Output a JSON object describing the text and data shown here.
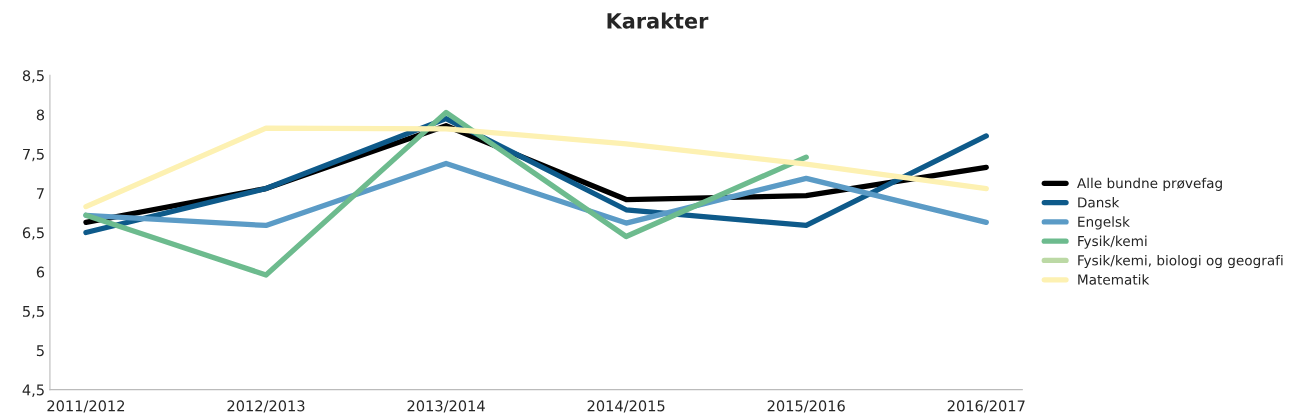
{
  "chart_data": {
    "type": "line",
    "title": "Karakter",
    "categories": [
      "2011/2012",
      "2012/2013",
      "2013/2014",
      "2014/2015",
      "2015/2016",
      "2016/2017"
    ],
    "series": [
      {
        "name": "Alle bundne prøvefag",
        "color": "#000000",
        "values": [
          6.63,
          7.06,
          7.86,
          6.92,
          6.97,
          7.33
        ]
      },
      {
        "name": "Dansk",
        "color": "#0e5a8a",
        "values": [
          6.5,
          7.06,
          7.95,
          6.79,
          6.59,
          7.73
        ]
      },
      {
        "name": "Engelsk",
        "color": "#5b9bc6",
        "values": [
          6.72,
          6.59,
          7.38,
          6.62,
          7.19,
          6.63
        ]
      },
      {
        "name": "Fysik/kemi",
        "color": "#6dbb8e",
        "values": [
          6.72,
          5.96,
          8.03,
          6.45,
          7.46,
          null
        ]
      },
      {
        "name": "Fysik/kemi, biologi og geografi",
        "color": "#bcd9a5",
        "values": [
          null,
          null,
          null,
          null,
          null,
          null
        ]
      },
      {
        "name": "Matematik",
        "color": "#fdf1b2",
        "values": [
          6.83,
          7.83,
          7.82,
          7.63,
          7.37,
          7.06
        ]
      }
    ],
    "ylim": [
      4.5,
      8.5
    ],
    "yticks": [
      {
        "value": 4.5,
        "label": "4,5"
      },
      5,
      {
        "value": 5.5,
        "label": "5,5"
      },
      6,
      {
        "value": 6.5,
        "label": "6,5"
      },
      7,
      {
        "value": 7.5,
        "label": "7,5"
      },
      8,
      {
        "value": 8.5,
        "label": "8,5"
      }
    ],
    "grid": false,
    "legend": "right",
    "line_style": "solid",
    "marker": "none"
  }
}
